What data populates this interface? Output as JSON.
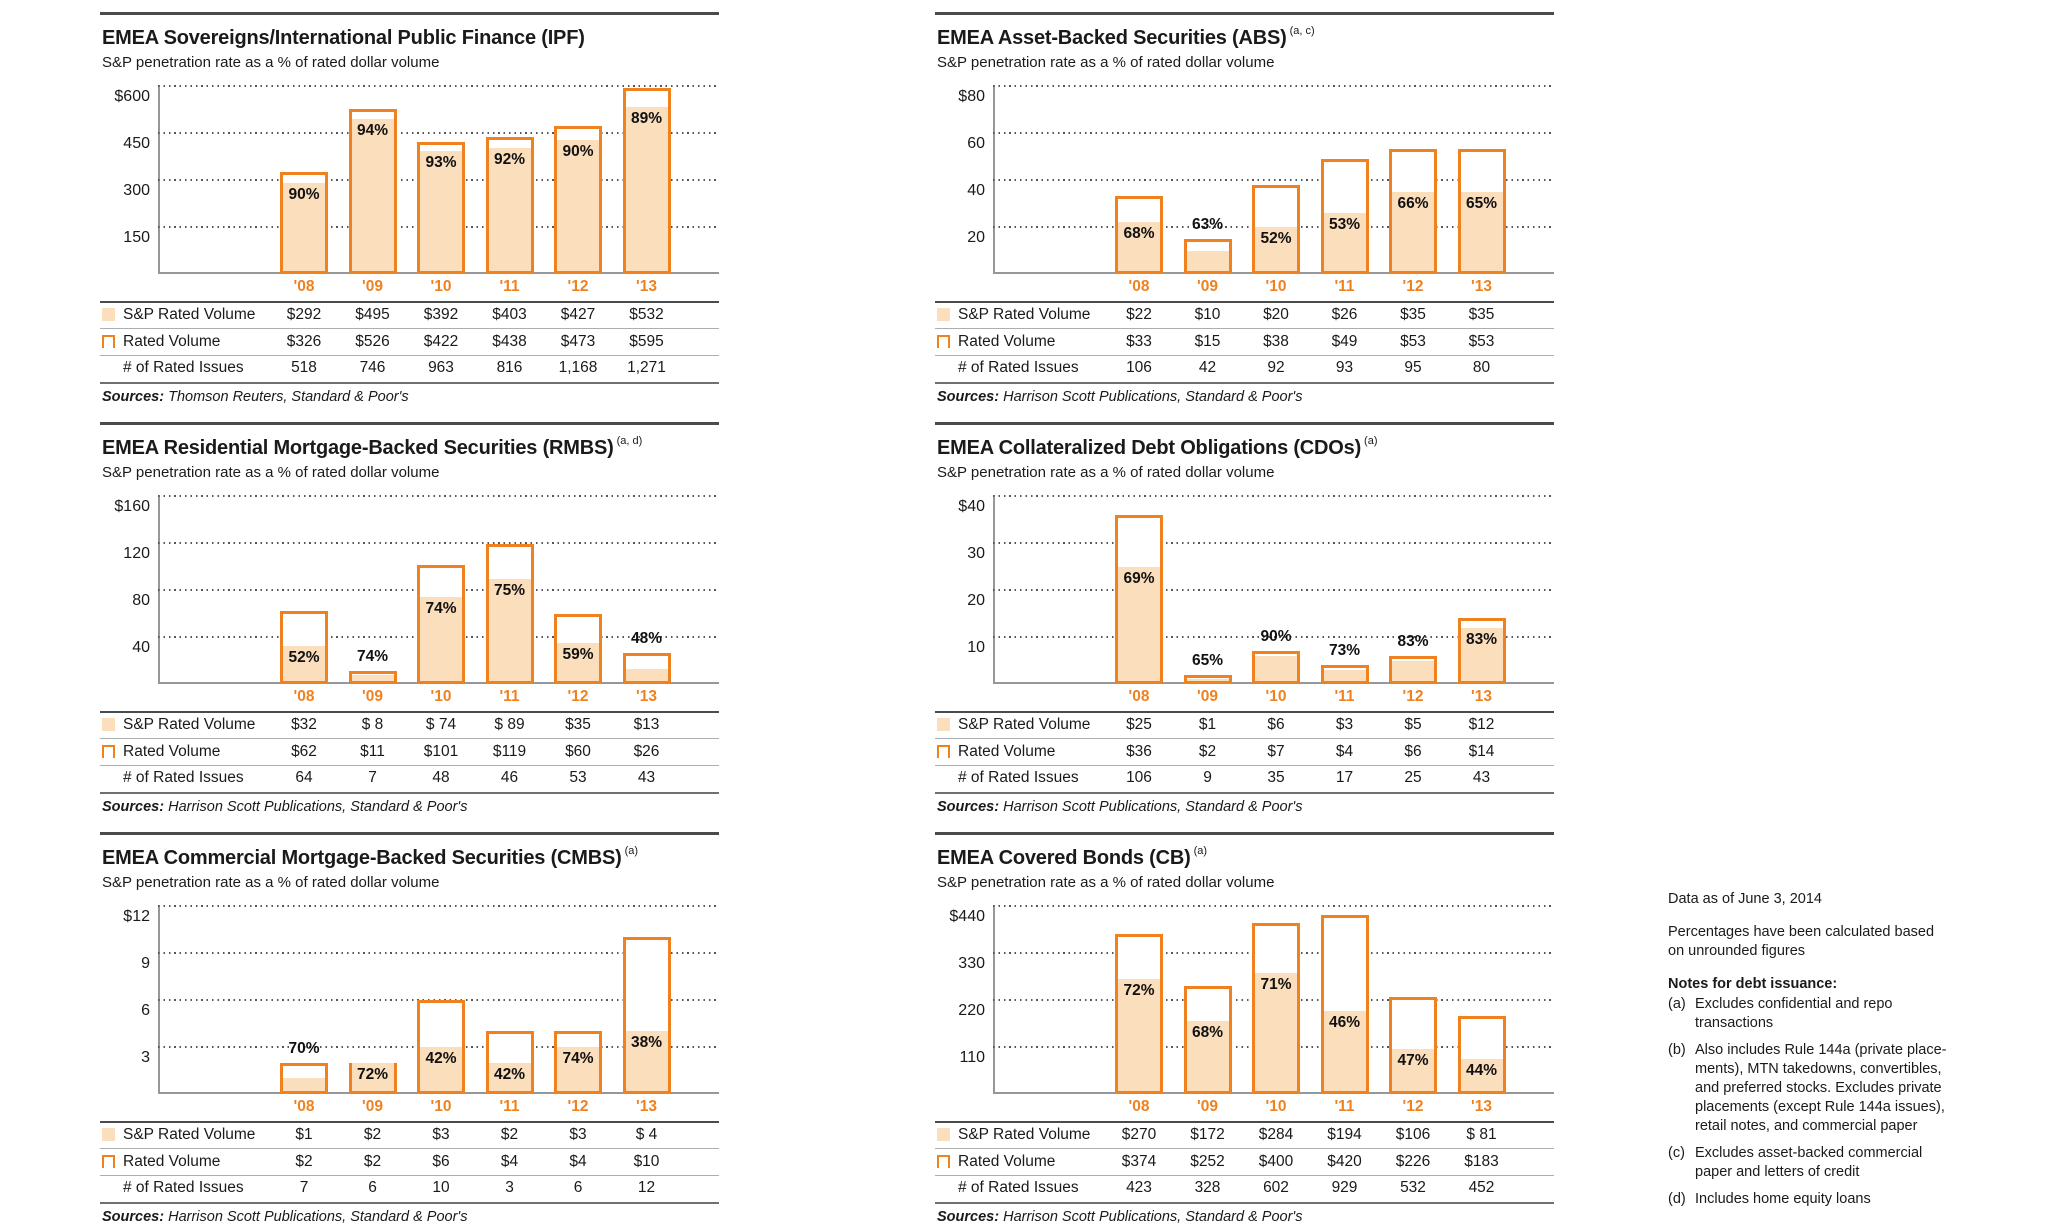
{
  "colors": {
    "accent_orange": "#F0811F",
    "bar_fill": "#FBDEBC",
    "text": "#1A1A1A",
    "gridline": "#55565A",
    "axis": "#95979A",
    "rule_dark": "#4A4B4D"
  },
  "chart_data": [
    {
      "type": "bar",
      "title": "EMEA Sovereigns/International Public Finance (IPF)",
      "title_note": "",
      "subtitle": "S&P penetration rate as a % of rated dollar volume",
      "categories": [
        "'08",
        "'09",
        "'10",
        "'11",
        "'12",
        "'13"
      ],
      "y_ticks": [
        "$600",
        "450",
        "300",
        "150"
      ],
      "y_max": 600,
      "series": [
        {
          "name": "Rated Volume",
          "values": [
            326,
            526,
            422,
            438,
            473,
            595
          ]
        },
        {
          "name": "S&P Rated Volume",
          "values": [
            292,
            495,
            392,
            403,
            427,
            532
          ]
        }
      ],
      "pct_labels": [
        "90%",
        "94%",
        "93%",
        "92%",
        "90%",
        "89%"
      ],
      "pct_above": [
        false,
        false,
        false,
        false,
        false,
        false
      ],
      "table_rows": [
        {
          "label": "S&P Rated Volume",
          "swatch": "fill",
          "values": [
            "$292",
            "$495",
            "$392",
            "$403",
            "$427",
            "$532"
          ]
        },
        {
          "label": "Rated Volume",
          "swatch": "outline",
          "values": [
            "$326",
            "$526",
            "$422",
            "$438",
            "$473",
            "$595"
          ]
        },
        {
          "label": "# of Rated Issues",
          "swatch": "none",
          "values": [
            "518",
            "746",
            "963",
            "816",
            "1,168",
            "1,271"
          ]
        }
      ],
      "sources_prefix": "Sources:",
      "sources": "Thomson Reuters, Standard & Poor's"
    },
    {
      "type": "bar",
      "title": "EMEA Asset-Backed Securities (ABS)",
      "title_note": "(a, c)",
      "subtitle": "S&P penetration rate as a % of rated dollar volume",
      "categories": [
        "'08",
        "'09",
        "'10",
        "'11",
        "'12",
        "'13"
      ],
      "y_ticks": [
        "$80",
        "60",
        "40",
        "20"
      ],
      "y_max": 80,
      "series": [
        {
          "name": "Rated Volume",
          "values": [
            33,
            15,
            38,
            49,
            53,
            53
          ]
        },
        {
          "name": "S&P Rated Volume",
          "values": [
            22,
            10,
            20,
            26,
            35,
            35
          ]
        }
      ],
      "pct_labels": [
        "68%",
        "63%",
        "52%",
        "53%",
        "66%",
        "65%"
      ],
      "pct_above": [
        false,
        true,
        false,
        false,
        false,
        false
      ],
      "table_rows": [
        {
          "label": "S&P Rated Volume",
          "swatch": "fill",
          "values": [
            "$22",
            "$10",
            "$20",
            "$26",
            "$35",
            "$35"
          ]
        },
        {
          "label": "Rated Volume",
          "swatch": "outline",
          "values": [
            "$33",
            "$15",
            "$38",
            "$49",
            "$53",
            "$53"
          ]
        },
        {
          "label": "# of Rated Issues",
          "swatch": "none",
          "values": [
            "106",
            "42",
            "92",
            "93",
            "95",
            "80"
          ]
        }
      ],
      "sources_prefix": "Sources:",
      "sources": "Harrison Scott Publications, Standard & Poor's"
    },
    {
      "type": "bar",
      "title": "EMEA Residential Mortgage-Backed Securities (RMBS)",
      "title_note": "(a, d)",
      "subtitle": "S&P penetration rate as a % of rated dollar volume",
      "categories": [
        "'08",
        "'09",
        "'10",
        "'11",
        "'12",
        "'13"
      ],
      "y_ticks": [
        "$160",
        "120",
        "80",
        "40"
      ],
      "y_max": 160,
      "series": [
        {
          "name": "Rated Volume",
          "values": [
            62,
            11,
            101,
            119,
            60,
            26
          ]
        },
        {
          "name": "S&P Rated Volume",
          "values": [
            32,
            8,
            74,
            89,
            35,
            13
          ]
        }
      ],
      "pct_labels": [
        "52%",
        "74%",
        "74%",
        "75%",
        "59%",
        "48%"
      ],
      "pct_above": [
        false,
        true,
        false,
        false,
        false,
        true
      ],
      "table_rows": [
        {
          "label": "S&P Rated Volume",
          "swatch": "fill",
          "values": [
            "$32",
            "$ 8",
            "$ 74",
            "$ 89",
            "$35",
            "$13"
          ]
        },
        {
          "label": "Rated Volume",
          "swatch": "outline",
          "values": [
            "$62",
            "$11",
            "$101",
            "$119",
            "$60",
            "$26"
          ]
        },
        {
          "label": "# of Rated Issues",
          "swatch": "none",
          "values": [
            "64",
            "7",
            "48",
            "46",
            "53",
            "43"
          ]
        }
      ],
      "sources_prefix": "Sources:",
      "sources": "Harrison Scott Publications, Standard & Poor's"
    },
    {
      "type": "bar",
      "title": "EMEA Collateralized Debt Obligations (CDOs)",
      "title_note": "(a)",
      "subtitle": "S&P penetration rate as a % of rated dollar volume",
      "categories": [
        "'08",
        "'09",
        "'10",
        "'11",
        "'12",
        "'13"
      ],
      "y_ticks": [
        "$40",
        "30",
        "20",
        "10"
      ],
      "y_max": 40,
      "series": [
        {
          "name": "Rated Volume",
          "values": [
            36,
            2,
            7,
            4,
            6,
            14
          ]
        },
        {
          "name": "S&P Rated Volume",
          "values": [
            25,
            1,
            6,
            3,
            5,
            12
          ]
        }
      ],
      "pct_labels": [
        "69%",
        "65%",
        "90%",
        "73%",
        "83%",
        "83%"
      ],
      "pct_above": [
        false,
        true,
        true,
        true,
        true,
        false
      ],
      "table_rows": [
        {
          "label": "S&P Rated Volume",
          "swatch": "fill",
          "values": [
            "$25",
            "$1",
            "$6",
            "$3",
            "$5",
            "$12"
          ]
        },
        {
          "label": "Rated Volume",
          "swatch": "outline",
          "values": [
            "$36",
            "$2",
            "$7",
            "$4",
            "$6",
            "$14"
          ]
        },
        {
          "label": "# of Rated Issues",
          "swatch": "none",
          "values": [
            "106",
            "9",
            "35",
            "17",
            "25",
            "43"
          ]
        }
      ],
      "sources_prefix": "Sources:",
      "sources": "Harrison Scott Publications, Standard & Poor's"
    },
    {
      "type": "bar",
      "title": "EMEA Commercial Mortgage-Backed Securities (CMBS)",
      "title_note": "(a)",
      "subtitle": "S&P penetration rate as a % of rated dollar volume",
      "categories": [
        "'08",
        "'09",
        "'10",
        "'11",
        "'12",
        "'13"
      ],
      "y_ticks": [
        "$12",
        "9",
        "6",
        "3"
      ],
      "y_max": 12,
      "series": [
        {
          "name": "Rated Volume",
          "values": [
            2,
            2,
            6,
            4,
            4,
            10
          ]
        },
        {
          "name": "S&P Rated Volume",
          "values": [
            1,
            2,
            3,
            2,
            3,
            4
          ]
        }
      ],
      "pct_labels": [
        "70%",
        "72%",
        "42%",
        "42%",
        "74%",
        "38%"
      ],
      "pct_above": [
        true,
        false,
        false,
        false,
        false,
        false
      ],
      "table_rows": [
        {
          "label": "S&P Rated Volume",
          "swatch": "fill",
          "values": [
            "$1",
            "$2",
            "$3",
            "$2",
            "$3",
            "$ 4"
          ]
        },
        {
          "label": "Rated Volume",
          "swatch": "outline",
          "values": [
            "$2",
            "$2",
            "$6",
            "$4",
            "$4",
            "$10"
          ]
        },
        {
          "label": "# of Rated Issues",
          "swatch": "none",
          "values": [
            "7",
            "6",
            "10",
            "3",
            "6",
            "12"
          ]
        }
      ],
      "sources_prefix": "Sources:",
      "sources": "Harrison Scott Publications, Standard & Poor's"
    },
    {
      "type": "bar",
      "title": "EMEA Covered Bonds (CB)",
      "title_note": "(a)",
      "subtitle": "S&P penetration rate as a % of rated dollar volume",
      "categories": [
        "'08",
        "'09",
        "'10",
        "'11",
        "'12",
        "'13"
      ],
      "y_ticks": [
        "$440",
        "330",
        "220",
        "110"
      ],
      "y_max": 440,
      "series": [
        {
          "name": "Rated Volume",
          "values": [
            374,
            252,
            400,
            420,
            226,
            183
          ]
        },
        {
          "name": "S&P Rated Volume",
          "values": [
            270,
            172,
            284,
            194,
            106,
            81
          ]
        }
      ],
      "pct_labels": [
        "72%",
        "68%",
        "71%",
        "46%",
        "47%",
        "44%"
      ],
      "pct_above": [
        false,
        false,
        false,
        false,
        false,
        false
      ],
      "table_rows": [
        {
          "label": "S&P Rated Volume",
          "swatch": "fill",
          "values": [
            "$270",
            "$172",
            "$284",
            "$194",
            "$106",
            "$ 81"
          ]
        },
        {
          "label": "Rated Volume",
          "swatch": "outline",
          "values": [
            "$374",
            "$252",
            "$400",
            "$420",
            "$226",
            "$183"
          ]
        },
        {
          "label": "# of Rated Issues",
          "swatch": "none",
          "values": [
            "423",
            "328",
            "602",
            "929",
            "532",
            "452"
          ]
        }
      ],
      "sources_prefix": "Sources:",
      "sources": "Harrison Scott Publications, Standard & Poor's"
    }
  ],
  "notes": {
    "data_as_of": "Data as of June 3, 2014",
    "calc_note": "Percentages have been calculated based\non unrounded figures",
    "heading": "Notes for debt issuance:",
    "items": [
      {
        "label": "(a)",
        "text": "Excludes confidential and repo\ntransactions"
      },
      {
        "label": "(b)",
        "text": "Also includes Rule 144a (private place-\nments), MTN takedowns, convertibles,\nand preferred stocks. Excludes private\nplacements (except Rule 144a issues),\nretail notes, and commercial paper"
      },
      {
        "label": "(c)",
        "text": "Excludes asset-backed commercial\npaper and letters of credit"
      },
      {
        "label": "(d)",
        "text": "Includes home equity loans"
      }
    ]
  }
}
